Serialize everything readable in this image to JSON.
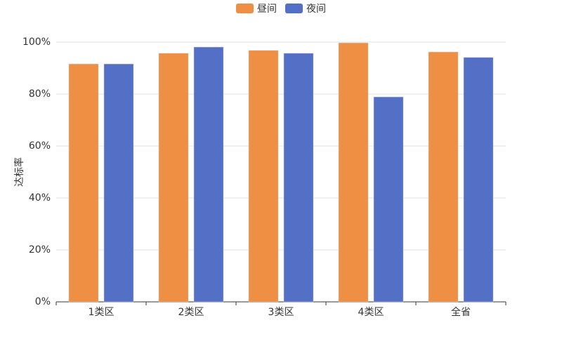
{
  "chart_data": {
    "type": "bar",
    "categories": [
      "1类区",
      "2类区",
      "3类区",
      "4类区",
      "全省"
    ],
    "series": [
      {
        "name": "昼间",
        "color": "#ef8f44",
        "values": [
          91.6,
          95.7,
          96.8,
          99.7,
          96.2
        ]
      },
      {
        "name": "夜间",
        "color": "#5470c6",
        "values": [
          91.6,
          98.1,
          95.7,
          78.9,
          94.1
        ]
      }
    ],
    "y_label": "达标率",
    "ylim": [
      0,
      100
    ],
    "yticks": [
      {
        "value": 0,
        "label": "0%"
      },
      {
        "value": 20,
        "label": "20%"
      },
      {
        "value": 40,
        "label": "40%"
      },
      {
        "value": 60,
        "label": "60%"
      },
      {
        "value": 80,
        "label": "80%"
      },
      {
        "value": 100,
        "label": "100%"
      }
    ],
    "grid": true
  }
}
